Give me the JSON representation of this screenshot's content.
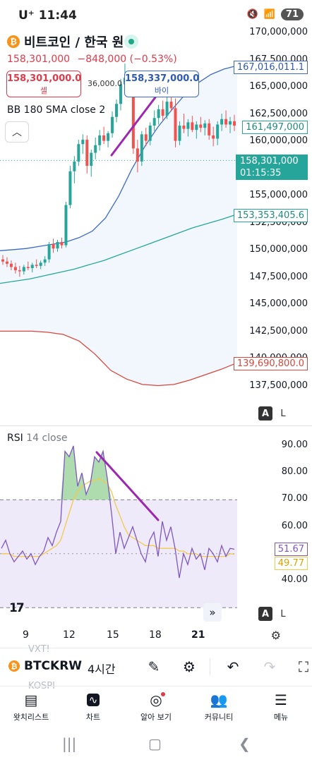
{
  "status_bar": {
    "carrier": "U⁺",
    "time": "11:44",
    "battery": "71"
  },
  "header": {
    "symbol_title": "비트코인 / 한국 원",
    "last_price": "158,301,000",
    "change": "−848,000 (−0.53%)",
    "sell_price": "158,301,000.0",
    "sell_label": "셀",
    "buy_price": "158,337,000.0",
    "buy_label": "바이",
    "spread": "36,000.0",
    "bb_label": "BB 180 SMA close 2"
  },
  "price_axis": {
    "ticks": [
      "170,000,000",
      "167,500,000",
      "165,000,000",
      "162,500,000",
      "160,000,000",
      "157,500,000",
      "155,000,000",
      "152,500,000",
      "150,000,000",
      "147,500,000",
      "145,000,000",
      "142,500,000",
      "140,000,000",
      "137,500,000"
    ],
    "bb_upper": "167,016,011.1",
    "current_tag": "161,497,000",
    "last_price_tag": "158,301,000",
    "countdown": "01:15:35",
    "bb_basis": "153,353,405.6",
    "bb_lower": "139,690,800.0",
    "auto_label": "A",
    "log_label": "L"
  },
  "rsi": {
    "title": "RSI",
    "params": "14 close",
    "ticks": [
      "90.00",
      "80.00",
      "70.00",
      "60.00",
      "50.00",
      "40.00"
    ],
    "value": "51.67",
    "ma_value": "49.77",
    "auto_label": "A",
    "log_label": "L"
  },
  "time_axis": {
    "labels": [
      "9",
      "12",
      "15",
      "18",
      "21"
    ]
  },
  "toolbar": {
    "ghost_top": "VXT!",
    "ghost_bottom": "KOSPI",
    "symbol": "BTCKRW",
    "interval": "4시간"
  },
  "bottom_nav": {
    "items": [
      {
        "label": "왓치리스트",
        "icon": "watchlist-icon"
      },
      {
        "label": "차트",
        "icon": "chart-icon"
      },
      {
        "label": "알아 보기",
        "icon": "explore-icon"
      },
      {
        "label": "커뮤니티",
        "icon": "community-icon"
      },
      {
        "label": "메뉴",
        "icon": "menu-icon"
      }
    ]
  },
  "colors": {
    "bb_upper": "#3e6ac4",
    "bb_basis": "#26a69a",
    "bb_lower": "#d6473c",
    "candle_up": "#26a69a",
    "candle_down": "#ef5350",
    "rsi_line": "#7e57c2",
    "rsi_ma": "#f2c94c",
    "trendline": "#9c27b0"
  },
  "chart_data": [
    {
      "type": "candlestick",
      "title": "비트코인 / 한국 원",
      "overlay": "BB 180 SMA close 2",
      "ylim": [
        136000000,
        171000000
      ],
      "x_labels": [
        "9",
        "12",
        "15",
        "18",
        "21"
      ],
      "candles": [
        [
          149200000,
          149600000,
          148700000,
          149000000
        ],
        [
          149000000,
          149400000,
          148500000,
          148800000
        ],
        [
          148800000,
          149100000,
          148200000,
          148500000
        ],
        [
          148500000,
          148900000,
          147900000,
          148200000
        ],
        [
          148200000,
          148600000,
          147600000,
          148100000
        ],
        [
          148100000,
          148700000,
          147800000,
          148500000
        ],
        [
          148500000,
          149000000,
          148200000,
          148400000
        ],
        [
          148400000,
          148900000,
          148000000,
          148700000
        ],
        [
          148700000,
          149200000,
          148400000,
          148600000
        ],
        [
          148600000,
          149100000,
          148300000,
          148900000
        ],
        [
          148900000,
          149500000,
          148600000,
          149200000
        ],
        [
          149200000,
          150800000,
          148900000,
          150600000
        ],
        [
          150600000,
          151100000,
          149800000,
          150200000
        ],
        [
          150200000,
          151000000,
          149900000,
          150800000
        ],
        [
          150800000,
          151200000,
          150200000,
          150500000
        ],
        [
          150500000,
          154500000,
          150300000,
          154200000
        ],
        [
          154200000,
          157800000,
          153900000,
          157300000
        ],
        [
          157300000,
          158700000,
          156200000,
          158200000
        ],
        [
          158200000,
          160200000,
          157800000,
          159800000
        ],
        [
          159800000,
          160700000,
          158900000,
          160200000
        ],
        [
          160200000,
          160600000,
          157100000,
          157800000
        ],
        [
          157800000,
          159300000,
          156800000,
          159000000
        ],
        [
          159000000,
          160400000,
          158400000,
          159700000
        ],
        [
          159700000,
          161100000,
          159200000,
          160600000
        ],
        [
          160600000,
          161400000,
          159800000,
          160100000
        ],
        [
          160100000,
          161000000,
          159500000,
          160800000
        ],
        [
          160800000,
          162800000,
          160400000,
          162300000
        ],
        [
          162300000,
          163900000,
          161800000,
          163500000
        ],
        [
          163500000,
          165800000,
          162900000,
          165300000
        ],
        [
          165300000,
          167200000,
          164800000,
          165900000
        ],
        [
          165900000,
          166400000,
          164500000,
          165200000
        ],
        [
          165200000,
          165600000,
          158900000,
          159400000
        ],
        [
          159400000,
          160200000,
          157200000,
          158200000
        ],
        [
          158200000,
          161000000,
          157800000,
          160700000
        ],
        [
          160700000,
          161300000,
          159600000,
          160100000
        ],
        [
          160100000,
          161800000,
          159700000,
          161500000
        ],
        [
          161500000,
          162900000,
          161000000,
          162200000
        ],
        [
          162200000,
          163400000,
          161600000,
          163000000
        ],
        [
          163000000,
          163800000,
          162000000,
          162400000
        ],
        [
          162400000,
          164200000,
          162100000,
          163700000
        ],
        [
          163700000,
          164300000,
          162800000,
          163100000
        ],
        [
          163100000,
          164000000,
          159500000,
          160100000
        ],
        [
          160100000,
          161900000,
          159700000,
          161500000
        ],
        [
          161500000,
          162600000,
          160800000,
          161200000
        ],
        [
          161200000,
          162100000,
          160500000,
          161800000
        ],
        [
          161800000,
          162400000,
          160900000,
          161100000
        ],
        [
          161100000,
          161900000,
          160300000,
          161600000
        ],
        [
          161600000,
          162300000,
          160900000,
          161300000
        ],
        [
          161300000,
          162000000,
          160600000,
          161700000
        ],
        [
          161700000,
          162100000,
          160200000,
          160600000
        ],
        [
          160600000,
          161400000,
          159600000,
          160300000
        ],
        [
          160300000,
          161900000,
          159700000,
          161600000
        ],
        [
          161600000,
          162600000,
          161000000,
          162100000
        ],
        [
          162100000,
          162900000,
          161300000,
          161600000
        ],
        [
          161600000,
          162300000,
          160800000,
          161900000
        ],
        [
          161900000,
          162500000,
          161000000,
          161497000
        ]
      ],
      "bb_upper": [
        150000000,
        150100000,
        150200000,
        150400000,
        150600000,
        150800000,
        151200000,
        151800000,
        153000000,
        155000000,
        157500000,
        159600000,
        161400000,
        162900000,
        164300000,
        165400000,
        166200000,
        166700000,
        167016011.1
      ],
      "bb_basis": [
        147000000,
        147200000,
        147400000,
        147700000,
        148000000,
        148300000,
        148700000,
        149100000,
        149600000,
        150100000,
        150600000,
        151100000,
        151600000,
        152100000,
        152500000,
        152900000,
        153353405.6
      ],
      "bb_lower": [
        142600000,
        142600000,
        142600000,
        142500000,
        142300000,
        141700000,
        140500000,
        139000000,
        138200000,
        137700000,
        137600000,
        137700000,
        138100000,
        138600000,
        139100000,
        139690800.0
      ],
      "last_price": 158301000
    },
    {
      "type": "line",
      "title": "RSI 14 close",
      "ylim": [
        32,
        92
      ],
      "bands": [
        30,
        70
      ],
      "series": [
        {
          "name": "RSI",
          "values": [
            52,
            55,
            50,
            47,
            49,
            51,
            48,
            50,
            46,
            49,
            51,
            56,
            53,
            58,
            62,
            88,
            86,
            90,
            75,
            80,
            72,
            76,
            86,
            84,
            88,
            78,
            65,
            50,
            58,
            52,
            56,
            60,
            55,
            50,
            47,
            55,
            58,
            49,
            62,
            55,
            60,
            52,
            41,
            50,
            46,
            52,
            48,
            50,
            44,
            52,
            50,
            47,
            53,
            49,
            52,
            51.67
          ]
        },
        {
          "name": "RSI MA",
          "values": [
            50,
            50,
            50,
            49,
            49,
            49,
            49,
            49,
            49,
            49,
            50,
            51,
            52,
            53,
            55,
            60,
            65,
            70,
            73,
            75,
            76,
            77,
            77,
            78,
            77,
            76,
            73,
            68,
            64,
            60,
            57,
            56,
            55,
            54,
            53,
            53,
            53,
            52,
            52,
            52,
            52,
            52,
            51,
            51,
            50,
            50,
            50,
            49,
            49,
            49,
            49,
            49,
            49,
            49,
            50,
            49.77
          ]
        }
      ]
    }
  ]
}
